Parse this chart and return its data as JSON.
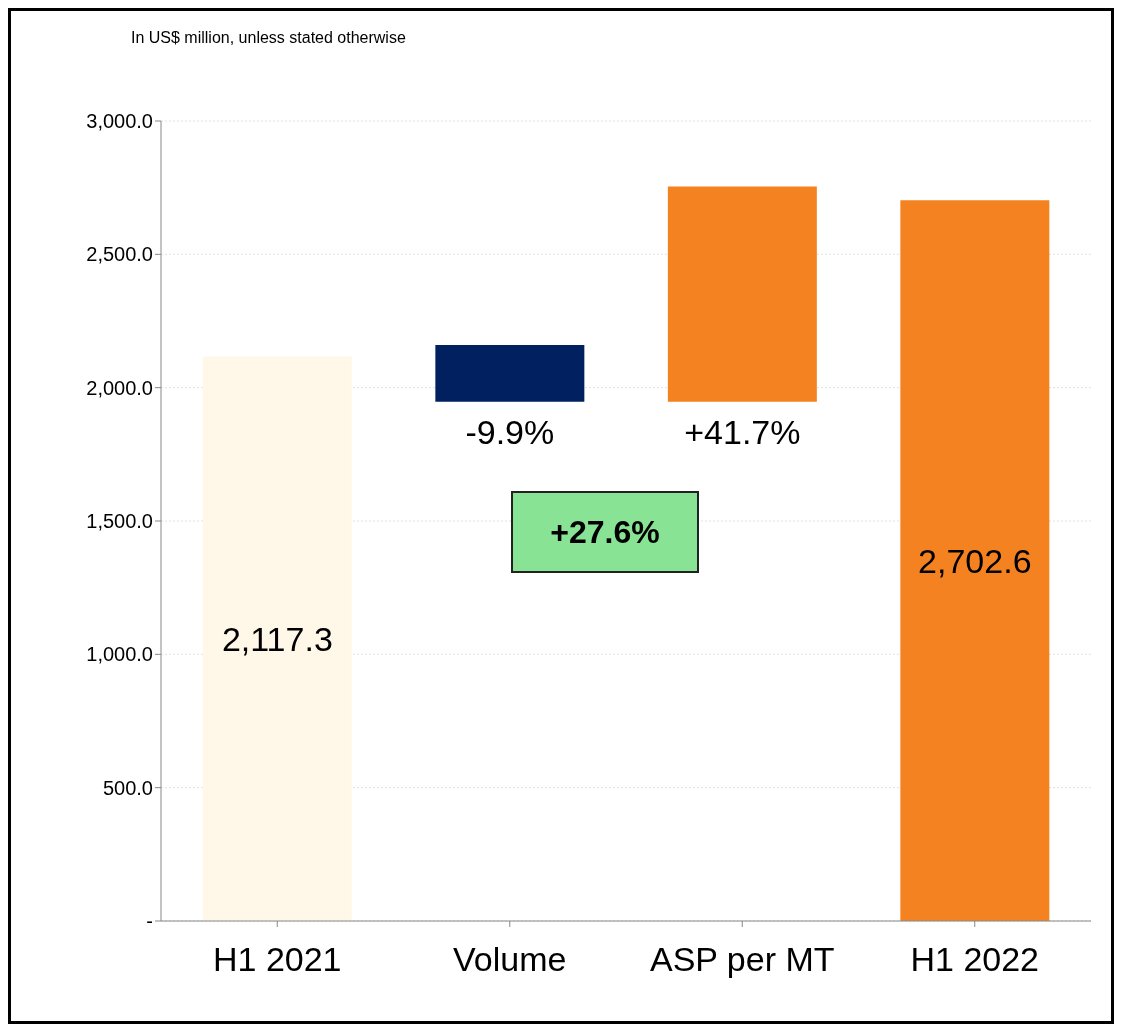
{
  "chart_data": {
    "type": "bar",
    "categories": [
      "H1 2021",
      "Volume",
      "ASP per MT",
      "H1 2022"
    ],
    "values": [
      2117.3,
      -213,
      807,
      2702.6
    ],
    "base": [
      0,
      2160,
      1947,
      0
    ],
    "colors": [
      "#fff8e8",
      "#002060",
      "#f58220",
      "#f58220"
    ],
    "value_labels": [
      "2,117.3",
      null,
      null,
      "2,702.6"
    ],
    "ylim": [
      0,
      3000
    ],
    "yticks": [
      {
        "value": 0,
        "label": "-"
      },
      {
        "value": 500,
        "label": "500.0"
      },
      {
        "value": 1000,
        "label": "1,000.0"
      },
      {
        "value": 1500,
        "label": "1,500.0"
      },
      {
        "value": 2000,
        "label": "2,000.0"
      },
      {
        "value": 2500,
        "label": "2,500.0"
      },
      {
        "value": 3000,
        "label": "3,000.0"
      }
    ],
    "grid": "y",
    "annotations": [
      "In US$ million, unless stated otherwise",
      "+27.6%",
      "-9.9%",
      "+41.7%"
    ]
  }
}
